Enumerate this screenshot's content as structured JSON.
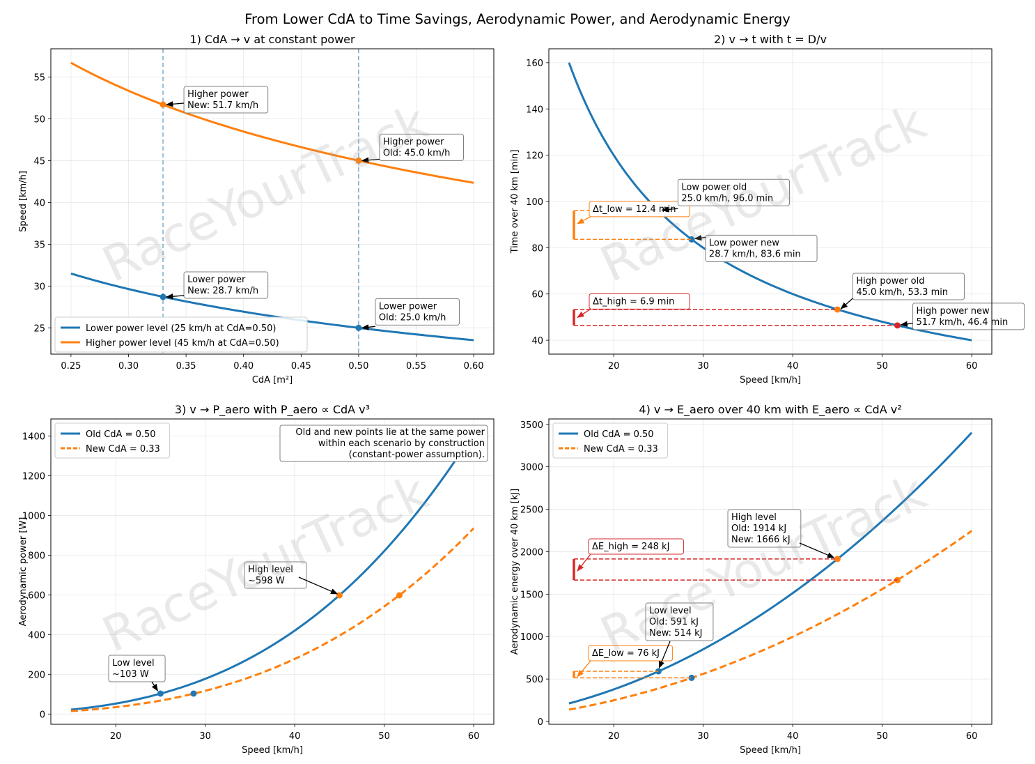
{
  "suptitle": "From Lower CdA to Time Savings, Aerodynamic Power, and Aerodynamic Energy",
  "watermark": "RaceYourTrack",
  "colors": {
    "blue": "#1f77b4",
    "orange": "#ff7f0e",
    "red": "#d62728",
    "grey": "#808080",
    "vline": "#1f77b4"
  },
  "chart_data": [
    {
      "type": "line",
      "title": "1) CdA → v at constant power",
      "xlabel": "CdA [m²]",
      "ylabel": "Speed [km/h]",
      "xlim": [
        0.2325,
        0.6175
      ],
      "ylim": [
        21.86,
        58.37
      ],
      "xticks": [
        0.25,
        0.3,
        0.35,
        0.4,
        0.45,
        0.5,
        0.55,
        0.6
      ],
      "xtick_labels": [
        "0.25",
        "0.30",
        "0.35",
        "0.40",
        "0.45",
        "0.50",
        "0.55",
        "0.60"
      ],
      "yticks": [
        25,
        30,
        35,
        40,
        45,
        50,
        55
      ],
      "ytick_labels": [
        "25",
        "30",
        "35",
        "40",
        "45",
        "50",
        "55"
      ],
      "vlines": [
        0.33,
        0.5
      ],
      "series": [
        {
          "name": "Lower power level (25 km/h at CdA=0.50)",
          "color_key": "blue",
          "k": 25
        },
        {
          "name": "Higher power level (45 km/h at CdA=0.50)",
          "color_key": "orange",
          "k": 45
        }
      ],
      "points": [
        {
          "x": 0.33,
          "y": 28.7,
          "color_key": "blue"
        },
        {
          "x": 0.5,
          "y": 25.0,
          "color_key": "blue"
        },
        {
          "x": 0.33,
          "y": 51.7,
          "color_key": "orange"
        },
        {
          "x": 0.5,
          "y": 45.0,
          "color_key": "orange"
        }
      ],
      "annotations": [
        {
          "lines": [
            "Higher power",
            "New: 51.7 km/h"
          ],
          "ax": 0.33,
          "ay": 51.7,
          "color_key": "black"
        },
        {
          "lines": [
            "Higher power",
            "Old: 45.0 km/h"
          ],
          "ax": 0.5,
          "ay": 45.0,
          "color_key": "black"
        },
        {
          "lines": [
            "Lower power",
            "New: 28.7 km/h"
          ],
          "ax": 0.33,
          "ay": 28.7,
          "color_key": "black"
        },
        {
          "lines": [
            "Lower power",
            "Old: 25.0 km/h"
          ],
          "ax": 0.5,
          "ay": 25.0,
          "color_key": "black"
        }
      ],
      "legend": "lower-left"
    },
    {
      "type": "line",
      "title": "2) v → t with t = D/v",
      "xlabel": "Speed [km/h]",
      "ylabel": "Time over 40 km [min]",
      "xlim": [
        12.75,
        62.25
      ],
      "ylim": [
        34.0,
        166.0
      ],
      "xticks": [
        20,
        30,
        40,
        50,
        60
      ],
      "xtick_labels": [
        "20",
        "30",
        "40",
        "50",
        "60"
      ],
      "yticks": [
        40,
        60,
        80,
        100,
        120,
        140,
        160
      ],
      "ytick_labels": [
        "40",
        "60",
        "80",
        "100",
        "120",
        "140",
        "160"
      ],
      "distance_km": 40,
      "points": [
        {
          "x": 25.0,
          "y": 96.0,
          "color_key": "orange"
        },
        {
          "x": 28.7,
          "y": 83.6,
          "color_key": "blue"
        },
        {
          "x": 45.0,
          "y": 53.3,
          "color_key": "orange"
        },
        {
          "x": 51.7,
          "y": 46.4,
          "color_key": "red"
        }
      ],
      "brackets": [
        {
          "from": 96.0,
          "to": 83.6,
          "color_key": "orange",
          "label": "Δt_low = 12.4 min"
        },
        {
          "from": 53.3,
          "to": 46.4,
          "color_key": "red",
          "label": "Δt_high = 6.9 min"
        }
      ],
      "annotations": [
        {
          "lines": [
            "Low power old",
            "25.0 km/h, 96.0 min"
          ],
          "ax": 25.0,
          "ay": 96.0,
          "color_key": "black"
        },
        {
          "lines": [
            "Low power new",
            "28.7 km/h, 83.6 min"
          ],
          "ax": 28.7,
          "ay": 83.6,
          "color_key": "black"
        },
        {
          "lines": [
            "High power old",
            "45.0 km/h, 53.3 min"
          ],
          "ax": 45.0,
          "ay": 53.3,
          "color_key": "black"
        },
        {
          "lines": [
            "High power new",
            "51.7 km/h, 46.4 min"
          ],
          "ax": 51.7,
          "ay": 46.4,
          "color_key": "black"
        }
      ]
    },
    {
      "type": "line",
      "title": "3) v → P_aero with P_aero ∝ CdA v³",
      "xlabel": "Speed [km/h]",
      "ylabel": "Aerodynamic power [W]",
      "xlim": [
        12.75,
        62.25
      ],
      "ylim": [
        -51.6,
        1485.9
      ],
      "xticks": [
        20,
        30,
        40,
        50,
        60
      ],
      "xtick_labels": [
        "20",
        "30",
        "40",
        "50",
        "60"
      ],
      "yticks": [
        0,
        200,
        400,
        600,
        800,
        1000,
        1200,
        1400
      ],
      "ytick_labels": [
        "0",
        "200",
        "400",
        "600",
        "800",
        "1000",
        "1200",
        "1400"
      ],
      "series": [
        {
          "name": "Old CdA = 0.50",
          "cda": 0.5,
          "color_key": "blue",
          "dashed": false
        },
        {
          "name": "New CdA = 0.33",
          "cda": 0.33,
          "color_key": "orange",
          "dashed": true
        }
      ],
      "points": [
        {
          "x": 25.0,
          "y": 103,
          "color_key": "blue"
        },
        {
          "x": 28.7,
          "y": 103,
          "color_key": "blue"
        },
        {
          "x": 45.0,
          "y": 598,
          "color_key": "orange"
        },
        {
          "x": 51.7,
          "y": 598,
          "color_key": "orange"
        }
      ],
      "annotations": [
        {
          "lines": [
            "High level",
            "~598 W"
          ],
          "ax": 45.0,
          "ay": 598,
          "color_key": "black"
        },
        {
          "lines": [
            "Low level",
            "~103 W"
          ],
          "ax": 25.0,
          "ay": 103,
          "color_key": "black"
        }
      ],
      "note": [
        "Old and new points lie at the same power",
        "within each scenario by construction",
        "(constant-power assumption)."
      ],
      "legend": "upper-left"
    },
    {
      "type": "line",
      "title": "4) v → E_aero over 40 km with E_aero ∝ CdA v²",
      "xlabel": "Speed [km/h]",
      "ylabel": "Aerodynamic energy over 40 km [kJ]",
      "xlim": [
        12.75,
        62.25
      ],
      "ylim": [
        -32.6,
        3563.9
      ],
      "xticks": [
        20,
        30,
        40,
        50,
        60
      ],
      "xtick_labels": [
        "20",
        "30",
        "40",
        "50",
        "60"
      ],
      "yticks": [
        0,
        500,
        1000,
        1500,
        2000,
        2500,
        3000,
        3500
      ],
      "ytick_labels": [
        "0",
        "500",
        "1000",
        "1500",
        "2000",
        "2500",
        "3000",
        "3500"
      ],
      "series": [
        {
          "name": "Old CdA = 0.50",
          "cda": 0.5,
          "color_key": "blue",
          "dashed": false
        },
        {
          "name": "New CdA = 0.33",
          "cda": 0.33,
          "color_key": "orange",
          "dashed": true
        }
      ],
      "points": [
        {
          "x": 25.0,
          "y": 591,
          "color_key": "blue"
        },
        {
          "x": 28.7,
          "y": 514,
          "color_key": "blue"
        },
        {
          "x": 45.0,
          "y": 1914,
          "color_key": "orange"
        },
        {
          "x": 51.7,
          "y": 1666,
          "color_key": "orange"
        }
      ],
      "brackets": [
        {
          "from": 1914,
          "to": 1666,
          "color_key": "red",
          "label": "ΔE_high = 248 kJ"
        },
        {
          "from": 591,
          "to": 514,
          "color_key": "orange",
          "label": "ΔE_low = 76 kJ"
        }
      ],
      "annotations": [
        {
          "lines": [
            "High level",
            "Old: 1914 kJ",
            "New: 1666 kJ"
          ],
          "ax": 45.0,
          "ay": 1914,
          "color_key": "black"
        },
        {
          "lines": [
            "Low level",
            "Old: 591 kJ",
            "New: 514 kJ"
          ],
          "ax": 25.0,
          "ay": 591,
          "color_key": "black"
        }
      ],
      "legend": "upper-left"
    }
  ]
}
